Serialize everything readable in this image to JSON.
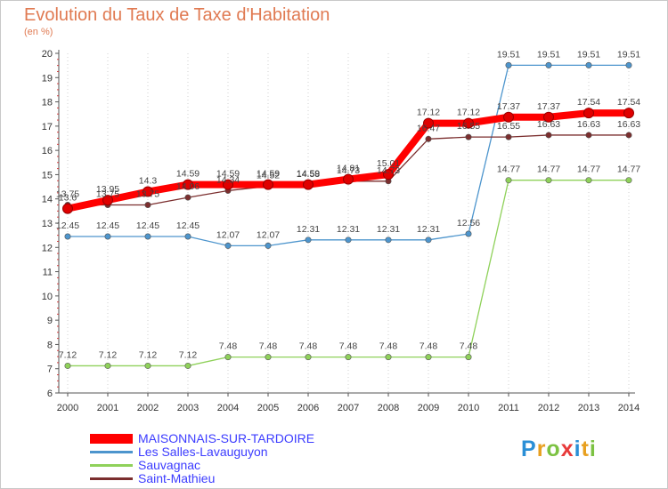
{
  "title": "Evolution du Taux de Taxe d'Habitation",
  "subtitle": "(en %)",
  "logo": {
    "letters": [
      "P",
      "r",
      "o",
      "x",
      "i",
      "t",
      "i"
    ],
    "colors": [
      "#2b8fd6",
      "#e8a020",
      "#7cc242",
      "#e83a3a",
      "#2b8fd6",
      "#e8a020",
      "#7cc242"
    ]
  },
  "chart_data": {
    "type": "line",
    "x": [
      2000,
      2001,
      2002,
      2003,
      2004,
      2005,
      2006,
      2007,
      2008,
      2009,
      2010,
      2011,
      2012,
      2013,
      2014
    ],
    "ylim": [
      6,
      20
    ],
    "yticks": [
      6,
      7,
      8,
      9,
      10,
      11,
      12,
      13,
      14,
      15,
      16,
      17,
      18,
      19,
      20
    ],
    "grid": "vertical-dotted",
    "legend_position": "bottom-left",
    "series": [
      {
        "name": "MAISONNAIS-SUR-TARDOIRE",
        "color": "#ff0000",
        "values": [
          13.6,
          13.95,
          14.3,
          14.59,
          14.59,
          14.59,
          14.59,
          14.81,
          15.01,
          17.12,
          17.12,
          17.37,
          17.37,
          17.54,
          17.54
        ],
        "labels": [
          "13.6",
          "13.95",
          "14.3",
          "14.59",
          "14.59",
          "14.59",
          "14.59",
          "14.81",
          "15.01",
          "17.12",
          "17.12",
          "17.37",
          "17.37",
          "17.54",
          "17.54"
        ]
      },
      {
        "name": "Les Salles-Lavauguyon",
        "color": "#4d95cd",
        "values": [
          12.45,
          12.45,
          12.45,
          12.45,
          12.07,
          12.07,
          12.31,
          12.31,
          12.31,
          12.31,
          12.56,
          19.51,
          19.51,
          19.51,
          19.51
        ],
        "labels": [
          "12.45",
          "12.45",
          "12.45",
          "12.45",
          "12.07",
          "12.07",
          "12.31",
          "12.31",
          "12.31",
          "12.31",
          "12.56",
          "19.51",
          "19.51",
          "19.51",
          "19.51"
        ]
      },
      {
        "name": "Sauvagnac",
        "color": "#8fd15a",
        "values": [
          7.12,
          7.12,
          7.12,
          7.12,
          7.48,
          7.48,
          7.48,
          7.48,
          7.48,
          7.48,
          7.48,
          14.77,
          14.77,
          14.77,
          14.77
        ],
        "labels": [
          "7.12",
          "7.12",
          "7.12",
          "7.12",
          "7.48",
          "7.48",
          "7.48",
          "7.48",
          "7.48",
          "7.48",
          "7.48",
          "14.77",
          "14.77",
          "14.77",
          "14.77"
        ]
      },
      {
        "name": "Saint-Mathieu",
        "color": "#7b2e2e",
        "values": [
          13.75,
          13.75,
          13.75,
          14.06,
          14.34,
          14.52,
          14.58,
          14.73,
          14.73,
          16.47,
          16.55,
          16.55,
          16.63,
          16.63,
          16.63
        ],
        "labels": [
          "13.75",
          "13.75",
          "13.75",
          "14.06",
          "14.34",
          "14.52",
          "14.58",
          "14.73",
          "14.73",
          "16.47",
          "16.55",
          "16.55",
          "16.63",
          "16.63",
          "16.63"
        ]
      }
    ]
  }
}
